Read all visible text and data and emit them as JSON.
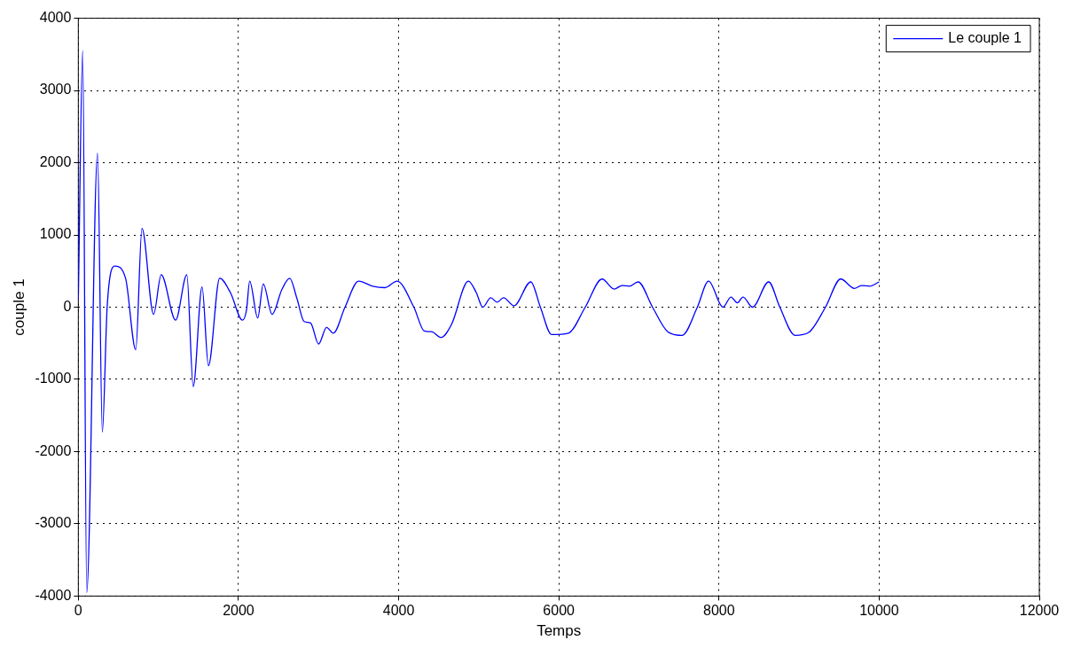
{
  "chart_data": {
    "type": "line",
    "xlabel": "Temps",
    "ylabel": "couple 1",
    "xlim": [
      0,
      12000
    ],
    "ylim": [
      -4000,
      4000
    ],
    "xticks": [
      0,
      2000,
      4000,
      6000,
      8000,
      10000,
      12000
    ],
    "yticks": [
      -4000,
      -3000,
      -2000,
      -1000,
      0,
      1000,
      2000,
      3000,
      4000
    ],
    "grid": true,
    "legend": "top right",
    "line_style": "solid",
    "marker": "none",
    "series": [
      {
        "name": "Le couple 1",
        "color": "#0000ff",
        "x": [
          0,
          55,
          105,
          240,
          300,
          360,
          455,
          590,
          717,
          795,
          940,
          1035,
          1215,
          1355,
          1435,
          1545,
          1625,
          1765,
          1900,
          2050,
          2100,
          2140,
          2240,
          2310,
          2420,
          2540,
          2640,
          2730,
          2820,
          2900,
          3000,
          3100,
          3185,
          3330,
          3500,
          3675,
          3830,
          3980,
          4190,
          4320,
          4410,
          4530,
          4660,
          4870,
          4970,
          5050,
          5150,
          5230,
          5310,
          5440,
          5650,
          5770,
          5910,
          6120,
          6330,
          6540,
          6690,
          6790,
          6880,
          6990,
          7170,
          7360,
          7540,
          7730,
          7870,
          8050,
          8150,
          8230,
          8300,
          8420,
          8620,
          8760,
          8950,
          9120,
          9330,
          9520,
          9690,
          9780,
          9880,
          10000
        ],
        "values": [
          100,
          3550,
          -3950,
          2130,
          -1730,
          0,
          570,
          400,
          -590,
          1090,
          -100,
          450,
          -180,
          450,
          -1100,
          280,
          -810,
          400,
          200,
          -180,
          -40,
          360,
          -150,
          320,
          -100,
          240,
          400,
          120,
          -200,
          -220,
          -510,
          -280,
          -360,
          0,
          360,
          290,
          270,
          360,
          0,
          -330,
          -340,
          -420,
          -240,
          360,
          200,
          0,
          130,
          70,
          130,
          20,
          350,
          0,
          -380,
          -360,
          0,
          390,
          250,
          300,
          290,
          350,
          0,
          -340,
          -390,
          0,
          360,
          0,
          140,
          60,
          140,
          0,
          350,
          0,
          -390,
          -350,
          0,
          390,
          260,
          300,
          290,
          350
        ]
      }
    ]
  }
}
